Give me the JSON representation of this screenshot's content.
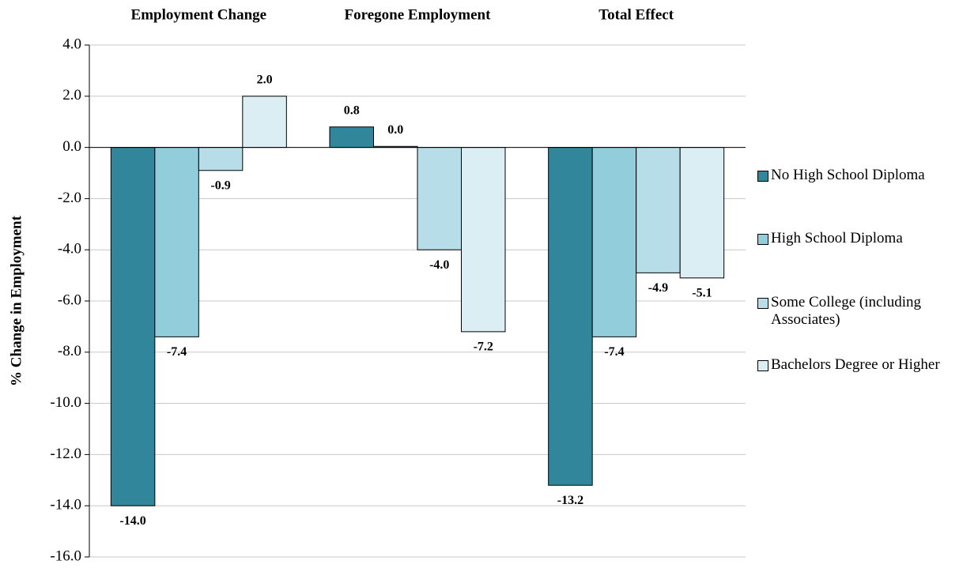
{
  "chart_data": {
    "type": "bar",
    "categories": [
      "Employment Change",
      "Foregone Employment",
      "Total Effect"
    ],
    "ylabel": "% Change in Employment",
    "ylim": [
      -16,
      4
    ],
    "yticks": [
      {
        "value": 4,
        "label": "4.0"
      },
      {
        "value": 2,
        "label": "2.0"
      },
      {
        "value": 0,
        "label": "0.0"
      },
      {
        "value": -2,
        "label": "-2.0"
      },
      {
        "value": -4,
        "label": "-4.0"
      },
      {
        "value": -6,
        "label": "-6.0"
      },
      {
        "value": -8,
        "label": "-8.0"
      },
      {
        "value": -10,
        "label": "-10.0"
      },
      {
        "value": -12,
        "label": "-12.0"
      },
      {
        "value": -14,
        "label": "-14.0"
      },
      {
        "value": -16,
        "label": "-16.0"
      }
    ],
    "grid": true,
    "legend": "right",
    "series": [
      {
        "name": "No High School Diploma",
        "color": "#31869b",
        "values": [
          -14,
          0.8,
          -13.2
        ],
        "value_labels": [
          "-14.0",
          "0.8",
          "-13.2"
        ]
      },
      {
        "name": "High School Diploma",
        "color": "#92cddc",
        "values": [
          -7.4,
          0.04,
          -7.4
        ],
        "value_labels": [
          "-7.4",
          "0.0",
          "-7.4"
        ]
      },
      {
        "name": "Some College (including Associates)",
        "color": "#b7dee8",
        "values": [
          -0.9,
          -4.0,
          -4.9
        ],
        "value_labels": [
          "-0.9",
          "-4.0",
          "-4.9"
        ]
      },
      {
        "name": "Bachelors Degree or Higher",
        "color": "#daeef3",
        "values": [
          2,
          -7.2,
          -5.1
        ],
        "value_labels": [
          "2.0",
          "-7.2",
          "-5.1"
        ]
      }
    ]
  }
}
